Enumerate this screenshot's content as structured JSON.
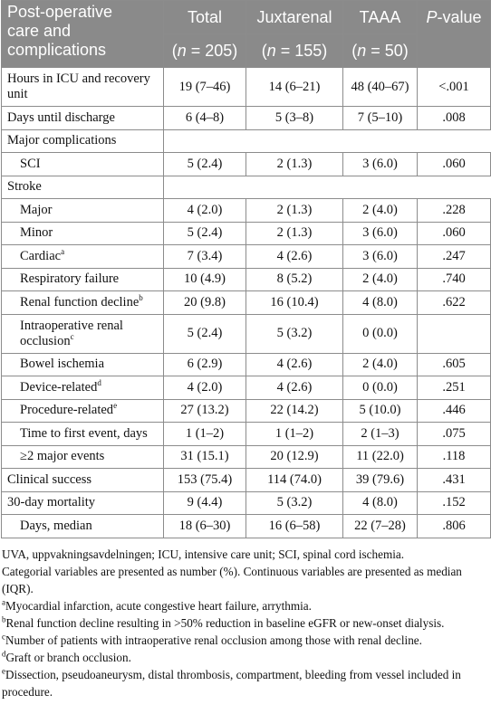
{
  "table": {
    "header": {
      "col0": [
        "Post-operative",
        "care and",
        "complications"
      ],
      "cols": [
        {
          "name": "Total",
          "n": "205"
        },
        {
          "name": "Juxtarenal",
          "n": "155"
        },
        {
          "name": "TAAA",
          "n": "50"
        }
      ],
      "pvalue_italic": "P",
      "pvalue_rest": "-value",
      "n_prefix": "n",
      "n_eq": " = "
    },
    "rows": [
      {
        "label": "Hours in ICU and recovery unit",
        "sup": "",
        "indent": false,
        "tall": true,
        "total": "19 (7–46)",
        "juxtarenal": "14 (6–21)",
        "taaa": "48 (40–67)",
        "p": "<.001"
      },
      {
        "label": "Days until discharge",
        "sup": "",
        "indent": false,
        "tall": false,
        "total": "6 (4–8)",
        "juxtarenal": "5 (3–8)",
        "taaa": "7 (5–10)",
        "p": ".008"
      },
      {
        "label": "Major complications",
        "sup": "",
        "indent": false,
        "tall": false,
        "header": true,
        "total": "",
        "juxtarenal": "",
        "taaa": "",
        "p": ""
      },
      {
        "label": "SCI",
        "sup": "",
        "indent": true,
        "tall": false,
        "total": "5 (2.4)",
        "juxtarenal": "2 (1.3)",
        "taaa": "3 (6.0)",
        "p": ".060"
      },
      {
        "label": "Stroke",
        "sup": "",
        "indent": false,
        "tall": false,
        "header": true,
        "total": "",
        "juxtarenal": "",
        "taaa": "",
        "p": ""
      },
      {
        "label": "Major",
        "sup": "",
        "indent": true,
        "tall": false,
        "total": "4 (2.0)",
        "juxtarenal": "2 (1.3)",
        "taaa": "2 (4.0)",
        "p": ".228"
      },
      {
        "label": "Minor",
        "sup": "",
        "indent": true,
        "tall": false,
        "total": "5 (2.4)",
        "juxtarenal": "2 (1.3)",
        "taaa": "3 (6.0)",
        "p": ".060"
      },
      {
        "label": "Cardiac",
        "sup": "a",
        "indent": true,
        "tall": false,
        "total": "7 (3.4)",
        "juxtarenal": "4 (2.6)",
        "taaa": "3 (6.0)",
        "p": ".247"
      },
      {
        "label": "Respiratory failure",
        "sup": "",
        "indent": true,
        "tall": false,
        "total": "10 (4.9)",
        "juxtarenal": "8 (5.2)",
        "taaa": "2 (4.0)",
        "p": ".740"
      },
      {
        "label": "Renal function decline",
        "sup": "b",
        "indent": true,
        "tall": false,
        "total": "20 (9.8)",
        "juxtarenal": "16 (10.4)",
        "taaa": "4 (8.0)",
        "p": ".622"
      },
      {
        "label": "Intraoperative renal occlusion",
        "sup": "c",
        "indent": true,
        "tall": true,
        "total": "5 (2.4)",
        "juxtarenal": "5 (3.2)",
        "taaa": "0 (0.0)",
        "p": ""
      },
      {
        "label": "Bowel ischemia",
        "sup": "",
        "indent": true,
        "tall": false,
        "total": "6 (2.9)",
        "juxtarenal": "4 (2.6)",
        "taaa": "2 (4.0)",
        "p": ".605"
      },
      {
        "label": "Device-related",
        "sup": "d",
        "indent": true,
        "tall": false,
        "total": "4 (2.0)",
        "juxtarenal": "4 (2.6)",
        "taaa": "0 (0.0)",
        "p": ".251"
      },
      {
        "label": "Procedure-related",
        "sup": "e",
        "indent": true,
        "tall": false,
        "total": "27 (13.2)",
        "juxtarenal": "22 (14.2)",
        "taaa": "5 (10.0)",
        "p": ".446"
      },
      {
        "label": "Time to first event, days",
        "sup": "",
        "indent": true,
        "tall": false,
        "total": "1 (1–2)",
        "juxtarenal": "1 (1–2)",
        "taaa": "2 (1–3)",
        "p": ".075"
      },
      {
        "label": "≥2 major events",
        "sup": "",
        "indent": true,
        "tall": false,
        "total": "31 (15.1)",
        "juxtarenal": "20 (12.9)",
        "taaa": "11 (22.0)",
        "p": ".118"
      },
      {
        "label": "Clinical success",
        "sup": "",
        "indent": false,
        "tall": false,
        "total": "153 (75.4)",
        "juxtarenal": "114 (74.0)",
        "taaa": "39 (79.6)",
        "p": ".431"
      },
      {
        "label": "30-day mortality",
        "sup": "",
        "indent": false,
        "tall": false,
        "total": "9 (4.4)",
        "juxtarenal": "5 (3.2)",
        "taaa": "4 (8.0)",
        "p": ".152"
      },
      {
        "label": "Days, median",
        "sup": "",
        "indent": true,
        "tall": false,
        "total": "18 (6–30)",
        "juxtarenal": "16 (6–58)",
        "taaa": "22 (7–28)",
        "p": ".806"
      }
    ]
  },
  "notes": [
    {
      "sup": "",
      "text": "UVA, uppvakningsavdelningen; ICU, intensive care unit; SCI, spinal cord ischemia."
    },
    {
      "sup": "",
      "text": "Categorial variables are presented as number (%). Continuous variables are presented as median (IQR)."
    },
    {
      "sup": "a",
      "text": "Myocardial infarction, acute congestive heart failure, arrythmia."
    },
    {
      "sup": "b",
      "text": "Renal function decline resulting in >50% reduction in baseline eGFR or new-onset dialysis."
    },
    {
      "sup": "c",
      "text": "Number of patients with intraoperative renal occlusion among those with renal decline."
    },
    {
      "sup": "d",
      "text": "Graft or branch occlusion."
    },
    {
      "sup": "e",
      "text": "Dissection, pseudoaneurysm, distal thrombosis, compartment, bleeding from vessel included in procedure."
    }
  ]
}
